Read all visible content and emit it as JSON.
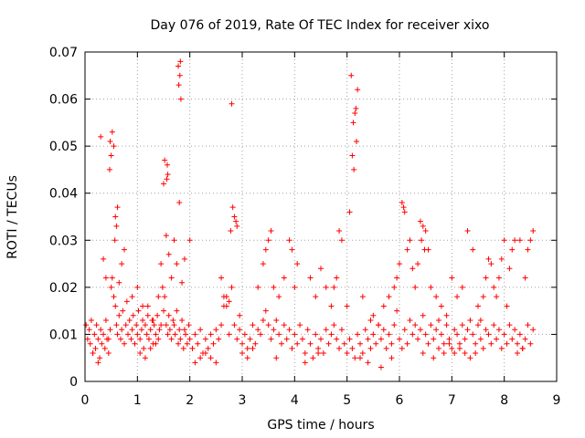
{
  "chart_data": {
    "type": "scatter",
    "title": "Day 076 of 2019, Rate Of TEC Index for receiver xixo",
    "xlabel": "GPS time / hours",
    "ylabel": "ROTI / TECUs",
    "xlim": [
      0,
      9
    ],
    "ylim": [
      0,
      0.07
    ],
    "x_ticks": [
      0,
      1,
      2,
      3,
      4,
      5,
      6,
      7,
      8,
      9
    ],
    "y_ticks": [
      0,
      0.01,
      0.02,
      0.03,
      0.04,
      0.05,
      0.06,
      0.07
    ],
    "y_tick_labels": [
      "0",
      "0.01",
      "0.02",
      "0.03",
      "0.04",
      "0.05",
      "0.06",
      "0.07"
    ],
    "grid": true,
    "marker": "+",
    "series": [
      {
        "name": "ROTI",
        "color": "#ff0000",
        "x": [
          0.02,
          0.05,
          0.08,
          0.1,
          0.12,
          0.15,
          0.18,
          0.2,
          0.22,
          0.25,
          0.28,
          0.3,
          0.32,
          0.35,
          0.38,
          0.4,
          0.42,
          0.45,
          0.48,
          0.5,
          0.52,
          0.55,
          0.58,
          0.6,
          0.62,
          0.65,
          0.68,
          0.7,
          0.72,
          0.75,
          0.78,
          0.8,
          0.82,
          0.85,
          0.88,
          0.9,
          0.92,
          0.95,
          0.98,
          1.0,
          1.02,
          1.05,
          1.08,
          1.1,
          1.12,
          1.15,
          1.18,
          1.2,
          1.22,
          1.25,
          1.28,
          1.3,
          1.32,
          1.35,
          1.38,
          1.4,
          1.42,
          1.45,
          1.48,
          1.5,
          1.52,
          1.55,
          1.58,
          1.6,
          1.62,
          1.65,
          1.68,
          1.7,
          1.72,
          1.75,
          1.78,
          1.8,
          1.82,
          1.85,
          1.88,
          1.9,
          1.92,
          1.95,
          1.98,
          2.0,
          2.05,
          2.1,
          2.15,
          2.2,
          2.25,
          2.3,
          2.35,
          2.4,
          2.45,
          2.5,
          2.55,
          2.6,
          2.65,
          2.7,
          2.75,
          2.8,
          2.85,
          2.9,
          2.95,
          3.0,
          3.05,
          3.1,
          3.15,
          3.2,
          3.25,
          3.3,
          3.35,
          3.4,
          3.45,
          3.5,
          3.55,
          3.6,
          3.65,
          3.7,
          3.75,
          3.8,
          3.85,
          3.9,
          3.95,
          4.0,
          4.05,
          4.1,
          4.15,
          4.2,
          4.25,
          4.3,
          4.35,
          4.4,
          4.45,
          4.5,
          4.55,
          4.6,
          4.65,
          4.7,
          4.75,
          4.8,
          4.85,
          4.9,
          4.95,
          5.0,
          5.05,
          5.1,
          5.15,
          5.2,
          5.25,
          5.3,
          5.35,
          5.4,
          5.45,
          5.5,
          5.55,
          5.6,
          5.65,
          5.7,
          5.75,
          5.8,
          5.85,
          5.9,
          5.95,
          6.0,
          6.05,
          6.1,
          6.15,
          6.2,
          6.25,
          6.3,
          6.35,
          6.4,
          6.45,
          6.5,
          6.55,
          6.6,
          6.65,
          6.7,
          6.75,
          6.8,
          6.85,
          6.9,
          6.95,
          7.0,
          7.05,
          7.1,
          7.15,
          7.2,
          7.25,
          7.3,
          7.35,
          7.4,
          7.45,
          7.5,
          7.55,
          7.6,
          7.65,
          7.7,
          7.75,
          7.8,
          7.85,
          7.9,
          7.95,
          8.0,
          8.05,
          8.1,
          8.15,
          8.2,
          8.25,
          8.3,
          8.35,
          8.4,
          8.45,
          8.5,
          8.55,
          0.45,
          0.47,
          0.5,
          0.52,
          0.48,
          0.55,
          0.58,
          0.6,
          0.62,
          0.57,
          1.55,
          1.57,
          1.52,
          1.56,
          1.58,
          1.5,
          1.8,
          1.82,
          1.78,
          1.81,
          1.79,
          1.83,
          2.8,
          2.82,
          2.85,
          2.88,
          2.9,
          2.78,
          5.05,
          5.1,
          5.12,
          5.15,
          5.17,
          5.2,
          5.08,
          5.18,
          5.13,
          6.05,
          6.08,
          6.1,
          6.4,
          6.45,
          6.5,
          6.42,
          6.48,
          7.7,
          0.3,
          0.35,
          0.4,
          0.65,
          0.7,
          0.75,
          0.9,
          1.0,
          1.1,
          1.2,
          1.3,
          1.4,
          1.45,
          1.6,
          1.65,
          1.7,
          1.75,
          1.85,
          1.9,
          2.0,
          2.6,
          2.65,
          2.7,
          2.75,
          2.95,
          3.3,
          3.4,
          3.45,
          3.5,
          3.55,
          3.6,
          3.7,
          3.8,
          3.9,
          3.95,
          4.0,
          4.05,
          4.3,
          4.4,
          4.5,
          4.6,
          4.7,
          4.75,
          4.8,
          4.85,
          4.9,
          5.0,
          5.3,
          5.5,
          5.6,
          5.7,
          5.8,
          5.9,
          5.95,
          6.0,
          6.15,
          6.2,
          6.25,
          6.3,
          6.35,
          6.55,
          6.6,
          6.7,
          6.8,
          6.9,
          7.0,
          7.1,
          7.2,
          7.3,
          7.4,
          7.5,
          7.55,
          7.6,
          7.65,
          7.75,
          7.8,
          7.85,
          7.9,
          7.95,
          8.0,
          8.05,
          8.1,
          8.15,
          8.2,
          8.3,
          8.4,
          8.45,
          8.5,
          8.55,
          0.15,
          0.25,
          1.05,
          1.15,
          1.25,
          1.35,
          2.1,
          2.2,
          2.3,
          2.4,
          2.5,
          3.0,
          3.1,
          3.2,
          3.65,
          4.2,
          4.45,
          5.25,
          5.4,
          5.45,
          5.65,
          5.85,
          6.45,
          6.65,
          6.75,
          6.85,
          6.95,
          7.05,
          7.15,
          7.25,
          7.35,
          7.45,
          8.25,
          8.35
        ],
        "y": [
          0.012,
          0.009,
          0.011,
          0.008,
          0.013,
          0.006,
          0.01,
          0.007,
          0.012,
          0.009,
          0.005,
          0.011,
          0.008,
          0.01,
          0.007,
          0.013,
          0.009,
          0.006,
          0.011,
          0.02,
          0.022,
          0.018,
          0.016,
          0.012,
          0.01,
          0.014,
          0.009,
          0.011,
          0.015,
          0.008,
          0.012,
          0.017,
          0.01,
          0.013,
          0.009,
          0.011,
          0.014,
          0.008,
          0.012,
          0.01,
          0.015,
          0.009,
          0.011,
          0.013,
          0.007,
          0.012,
          0.01,
          0.016,
          0.009,
          0.011,
          0.013,
          0.008,
          0.012,
          0.01,
          0.014,
          0.009,
          0.011,
          0.012,
          0.02,
          0.015,
          0.018,
          0.012,
          0.01,
          0.014,
          0.011,
          0.009,
          0.013,
          0.012,
          0.01,
          0.015,
          0.008,
          0.011,
          0.009,
          0.013,
          0.007,
          0.011,
          0.01,
          0.008,
          0.012,
          0.009,
          0.007,
          0.01,
          0.008,
          0.011,
          0.006,
          0.009,
          0.007,
          0.01,
          0.008,
          0.011,
          0.009,
          0.012,
          0.016,
          0.018,
          0.01,
          0.02,
          0.012,
          0.009,
          0.011,
          0.008,
          0.01,
          0.007,
          0.009,
          0.012,
          0.008,
          0.011,
          0.01,
          0.013,
          0.015,
          0.012,
          0.009,
          0.011,
          0.013,
          0.01,
          0.008,
          0.012,
          0.009,
          0.011,
          0.007,
          0.01,
          0.008,
          0.012,
          0.009,
          0.006,
          0.011,
          0.008,
          0.005,
          0.01,
          0.007,
          0.009,
          0.006,
          0.011,
          0.008,
          0.01,
          0.012,
          0.009,
          0.007,
          0.011,
          0.008,
          0.006,
          0.009,
          0.007,
          0.005,
          0.01,
          0.008,
          0.006,
          0.011,
          0.009,
          0.013,
          0.01,
          0.008,
          0.012,
          0.009,
          0.011,
          0.007,
          0.01,
          0.008,
          0.012,
          0.015,
          0.009,
          0.007,
          0.011,
          0.008,
          0.013,
          0.01,
          0.012,
          0.009,
          0.011,
          0.014,
          0.01,
          0.008,
          0.012,
          0.009,
          0.011,
          0.013,
          0.01,
          0.008,
          0.012,
          0.009,
          0.007,
          0.011,
          0.01,
          0.008,
          0.012,
          0.009,
          0.011,
          0.013,
          0.01,
          0.008,
          0.012,
          0.009,
          0.007,
          0.011,
          0.01,
          0.008,
          0.012,
          0.009,
          0.011,
          0.007,
          0.01,
          0.008,
          0.012,
          0.009,
          0.011,
          0.008,
          0.01,
          0.007,
          0.009,
          0.012,
          0.008,
          0.011,
          0.009,
          0.045,
          0.048,
          0.053,
          0.051,
          0.05,
          0.035,
          0.033,
          0.037,
          0.03,
          0.031,
          0.046,
          0.047,
          0.043,
          0.044,
          0.042,
          0.038,
          0.068,
          0.067,
          0.065,
          0.063,
          0.06,
          0.059,
          0.037,
          0.035,
          0.034,
          0.033,
          0.032,
          0.036,
          0.048,
          0.055,
          0.057,
          0.058,
          0.062,
          0.065,
          0.051,
          0.045,
          0.038,
          0.037,
          0.036,
          0.034,
          0.033,
          0.032,
          0.03,
          0.028,
          0.026,
          0.052,
          0.026,
          0.022,
          0.021,
          0.025,
          0.028,
          0.018,
          0.02,
          0.016,
          0.014,
          0.013,
          0.018,
          0.025,
          0.027,
          0.022,
          0.03,
          0.025,
          0.021,
          0.026,
          0.03,
          0.022,
          0.018,
          0.016,
          0.017,
          0.014,
          0.02,
          0.025,
          0.028,
          0.03,
          0.032,
          0.02,
          0.018,
          0.022,
          0.03,
          0.028,
          0.02,
          0.025,
          0.022,
          0.018,
          0.024,
          0.02,
          0.016,
          0.02,
          0.022,
          0.032,
          0.03,
          0.016,
          0.018,
          0.014,
          0.012,
          0.016,
          0.018,
          0.02,
          0.022,
          0.025,
          0.028,
          0.03,
          0.024,
          0.02,
          0.025,
          0.028,
          0.02,
          0.018,
          0.016,
          0.014,
          0.022,
          0.018,
          0.02,
          0.032,
          0.028,
          0.016,
          0.013,
          0.018,
          0.022,
          0.025,
          0.02,
          0.018,
          0.022,
          0.026,
          0.03,
          0.016,
          0.024,
          0.028,
          0.03,
          0.03,
          0.022,
          0.028,
          0.03,
          0.032,
          0.006,
          0.004,
          0.006,
          0.005,
          0.007,
          0.008,
          0.004,
          0.005,
          0.006,
          0.005,
          0.004,
          0.006,
          0.005,
          0.007,
          0.005,
          0.004,
          0.006,
          0.005,
          0.004,
          0.007,
          0.003,
          0.005,
          0.006,
          0.005,
          0.007,
          0.006,
          0.008,
          0.006,
          0.007,
          0.006,
          0.005,
          0.006,
          0.006,
          0.007
        ]
      }
    ]
  }
}
